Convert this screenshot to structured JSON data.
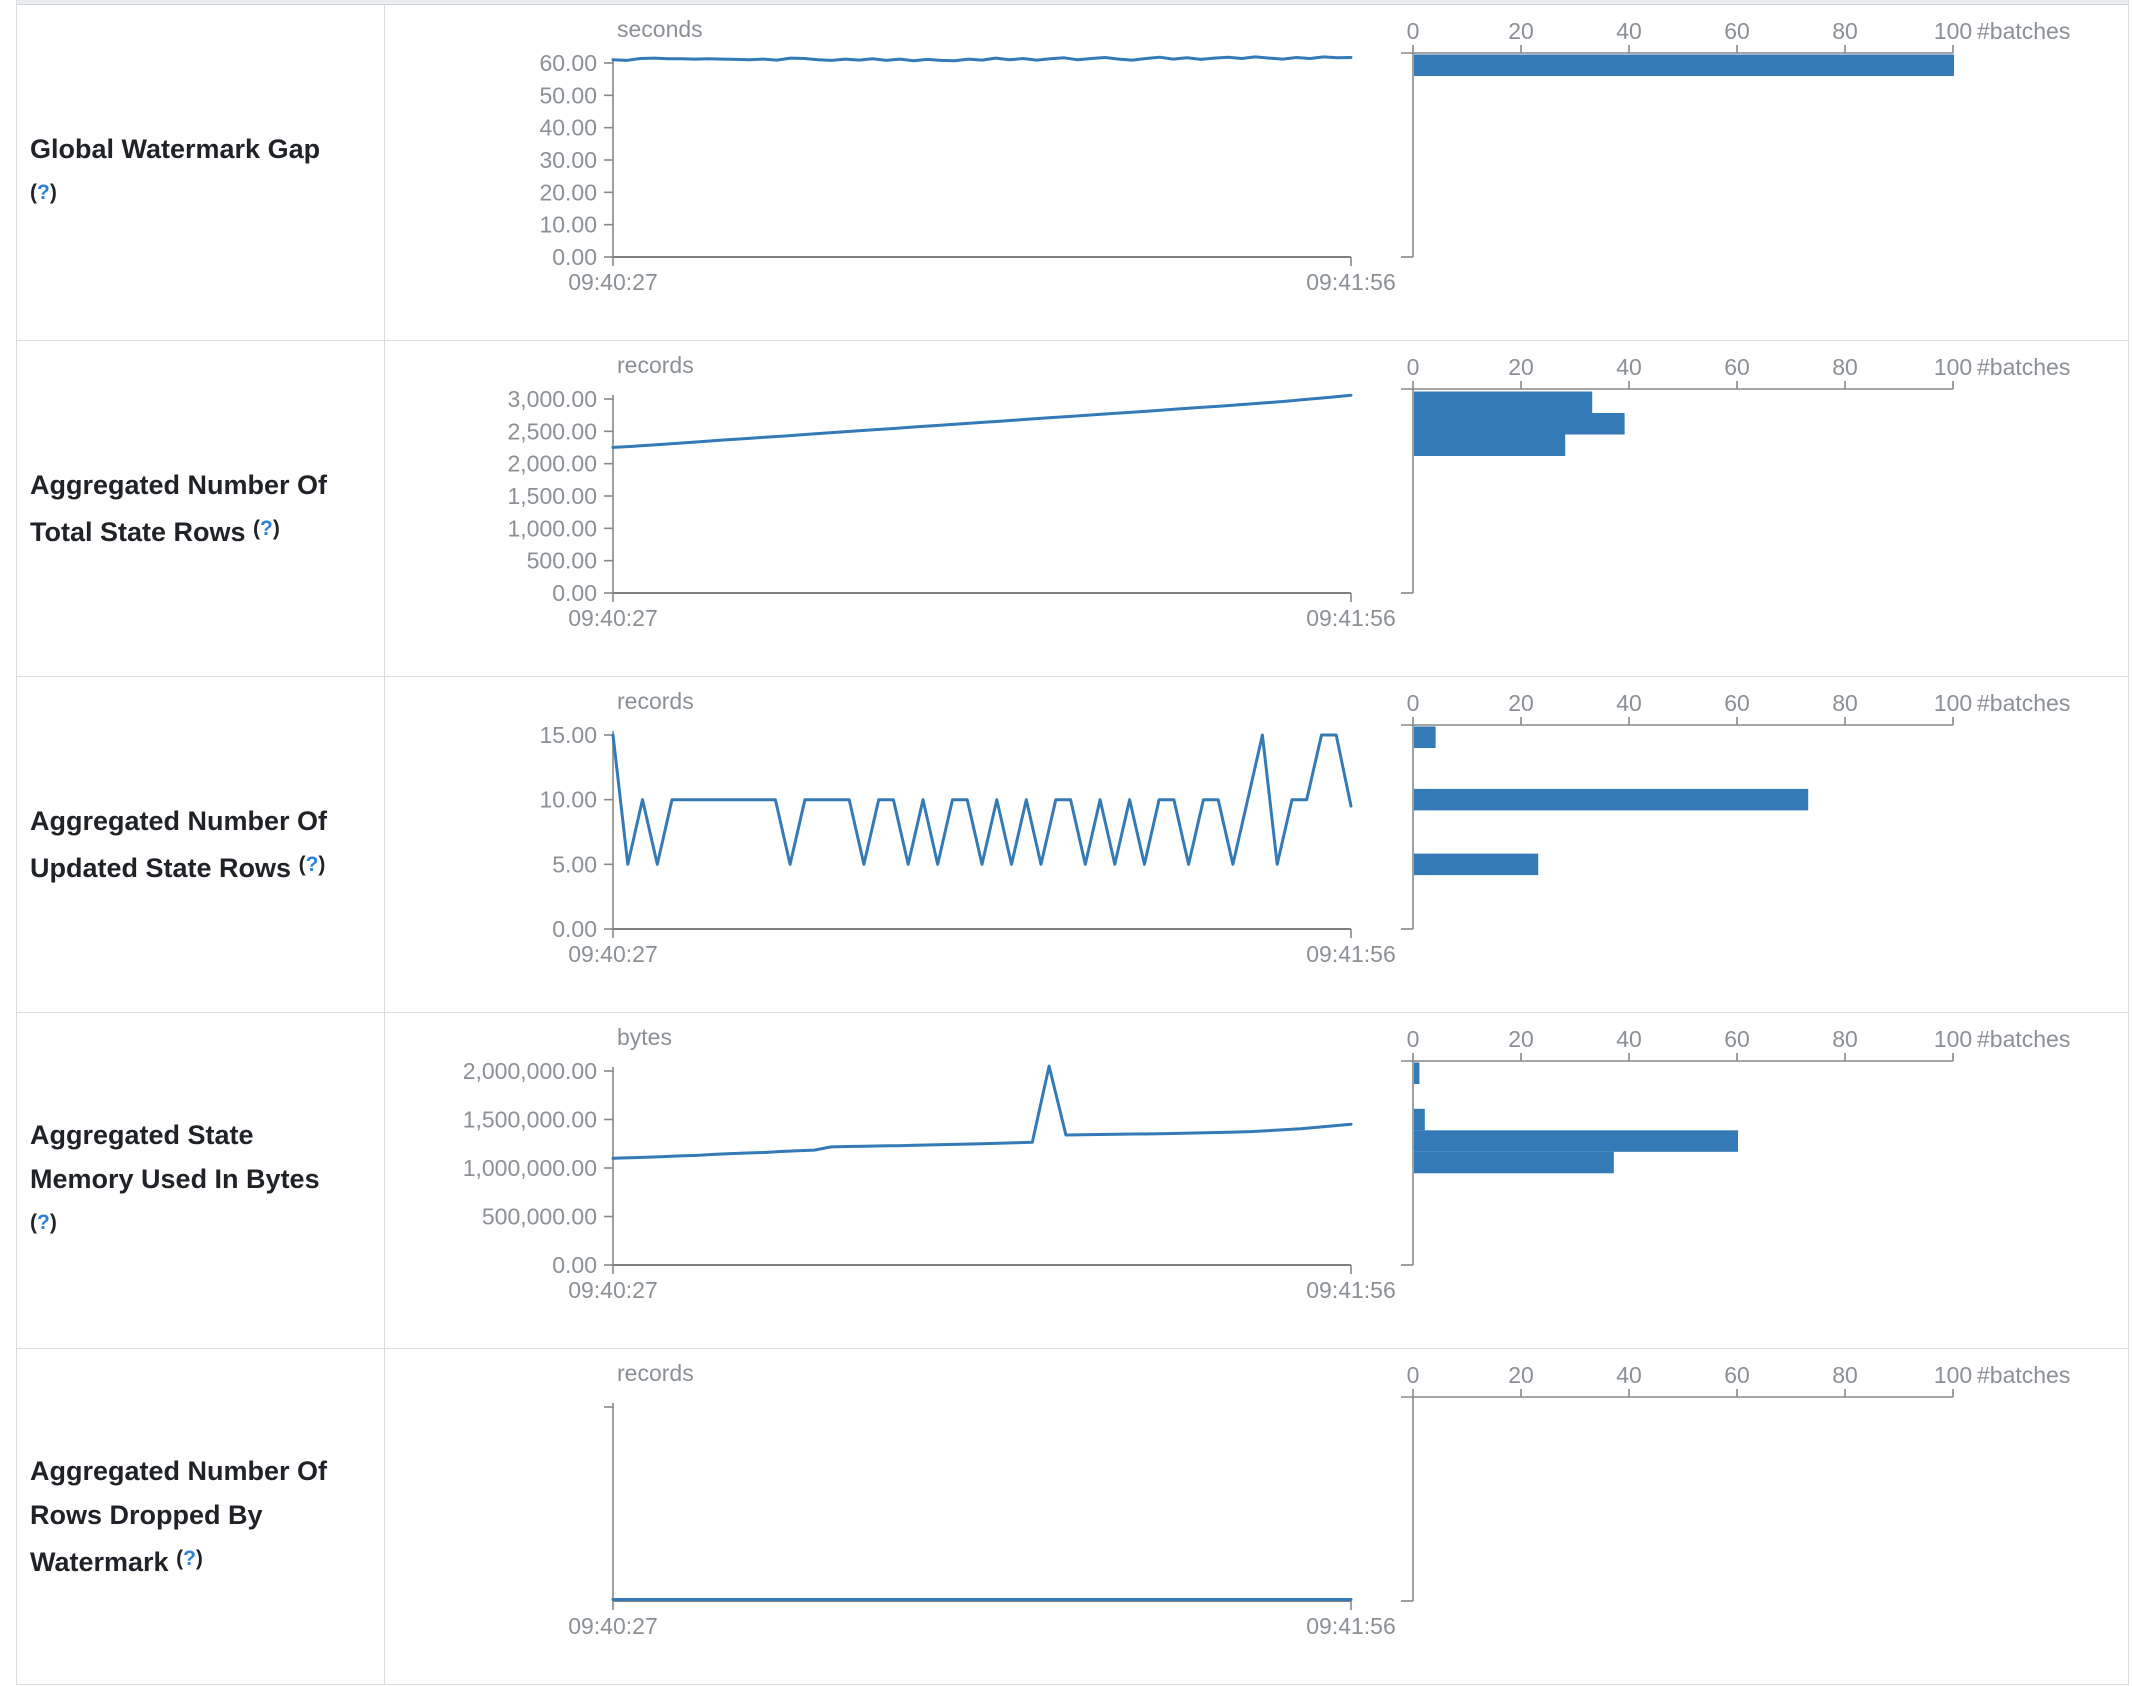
{
  "colors": {
    "accent": "#337ab7",
    "link": "#2f7ed8",
    "axis": "#888888",
    "axis_text": "#8a9095"
  },
  "table": {
    "rows": [
      {
        "name_lines": [
          "Global Watermark Gap"
        ],
        "help_label": "(?)",
        "help_own_line": true
      },
      {
        "name_lines": [
          "Aggregated Number Of",
          "Total State Rows"
        ],
        "help_label": "(?)",
        "help_own_line": false
      },
      {
        "name_lines": [
          "Aggregated Number Of",
          "Updated State Rows"
        ],
        "help_label": "(?)",
        "help_own_line": false
      },
      {
        "name_lines": [
          "Aggregated State",
          "Memory Used In Bytes"
        ],
        "help_label": "(?)",
        "help_own_line": true
      },
      {
        "name_lines": [
          "Aggregated Number Of",
          "Rows Dropped By",
          "Watermark"
        ],
        "help_label": "(?)",
        "help_own_line": false
      }
    ]
  },
  "chart_data": [
    {
      "type": "line",
      "title": "Global Watermark Gap",
      "unit": "seconds",
      "x_start": "09:40:27",
      "x_end": "09:41:56",
      "y_ticks": [
        "60.00",
        "50.00",
        "40.00",
        "30.00",
        "20.00",
        "10.00",
        "0.00"
      ],
      "y_top": 60,
      "values": [
        61.0,
        60.8,
        61.4,
        61.5,
        61.3,
        61.3,
        61.2,
        61.3,
        61.2,
        61.1,
        61.0,
        61.2,
        60.9,
        61.5,
        61.4,
        61.0,
        60.8,
        61.2,
        60.9,
        61.3,
        60.8,
        61.2,
        60.7,
        61.1,
        60.8,
        60.7,
        61.2,
        60.9,
        61.5,
        61.0,
        61.4,
        60.9,
        61.3,
        61.6,
        61.0,
        61.4,
        61.7,
        61.2,
        60.9,
        61.4,
        61.8,
        61.2,
        61.6,
        61.1,
        61.5,
        61.8,
        61.4,
        61.9,
        61.5,
        61.2,
        61.7,
        61.4,
        61.9,
        61.6,
        61.7
      ],
      "histogram": {
        "axis_label": "#batches",
        "x_ticks": [
          0,
          20,
          40,
          60,
          80,
          100
        ],
        "bins": [
          {
            "value": 61,
            "batches": 100
          }
        ]
      }
    },
    {
      "type": "line",
      "title": "Aggregated Number Of Total State Rows",
      "unit": "records",
      "x_start": "09:40:27",
      "x_end": "09:41:56",
      "y_ticks": [
        "3,000.00",
        "2,500.00",
        "2,000.00",
        "1,500.00",
        "1,000.00",
        "500.00",
        "0.00"
      ],
      "y_top": 3000,
      "values": [
        2252,
        2270,
        2293,
        2315,
        2340,
        2364,
        2386,
        2409,
        2430,
        2455,
        2478,
        2500,
        2523,
        2546,
        2570,
        2592,
        2615,
        2638,
        2660,
        2684,
        2707,
        2730,
        2752,
        2775,
        2798,
        2820,
        2845,
        2868,
        2890,
        2915,
        2940,
        2966,
        2995,
        3025,
        3058
      ],
      "histogram": {
        "axis_label": "#batches",
        "x_ticks": [
          0,
          20,
          40,
          60,
          80,
          100
        ],
        "bins": [
          {
            "value": 2950,
            "batches": 33
          },
          {
            "value": 2650,
            "batches": 39
          },
          {
            "value": 2350,
            "batches": 28
          }
        ]
      }
    },
    {
      "type": "line",
      "title": "Aggregated Number Of Updated State Rows",
      "unit": "records",
      "x_start": "09:40:27",
      "x_end": "09:41:56",
      "y_ticks": [
        "15.00",
        "10.00",
        "5.00",
        "0.00"
      ],
      "y_top": 15,
      "values": [
        15,
        5,
        10,
        5,
        10,
        10,
        10,
        10,
        10,
        10,
        10,
        10,
        5,
        10,
        10,
        10,
        10,
        5,
        10,
        10,
        5,
        10,
        5,
        10,
        10,
        5,
        10,
        5,
        10,
        5,
        10,
        10,
        5,
        10,
        5,
        10,
        5,
        10,
        10,
        5,
        10,
        10,
        5,
        10,
        15,
        5,
        10,
        10,
        15,
        15,
        9.5
      ],
      "histogram": {
        "axis_label": "#batches",
        "x_ticks": [
          0,
          20,
          40,
          60,
          80,
          100
        ],
        "bins": [
          {
            "value": 15,
            "batches": 4
          },
          {
            "value": 10,
            "batches": 73
          },
          {
            "value": 5,
            "batches": 23
          }
        ]
      }
    },
    {
      "type": "line",
      "title": "Aggregated State Memory Used In Bytes",
      "unit": "bytes",
      "x_start": "09:40:27",
      "x_end": "09:41:56",
      "y_ticks": [
        "2,000,000.00",
        "1,500,000.00",
        "1,000,000.00",
        "500,000.00",
        "0.00"
      ],
      "y_top": 2000000,
      "values": [
        1100000,
        1105000,
        1110000,
        1118000,
        1125000,
        1130000,
        1140000,
        1148000,
        1155000,
        1160000,
        1170000,
        1178000,
        1185000,
        1218000,
        1222000,
        1225000,
        1228000,
        1230000,
        1235000,
        1238000,
        1242000,
        1246000,
        1250000,
        1255000,
        1260000,
        1265000,
        2050000,
        1340000,
        1342000,
        1345000,
        1348000,
        1350000,
        1352000,
        1355000,
        1358000,
        1362000,
        1366000,
        1370000,
        1375000,
        1385000,
        1395000,
        1405000,
        1420000,
        1435000,
        1450000
      ],
      "histogram": {
        "axis_label": "#batches",
        "x_ticks": [
          0,
          20,
          40,
          60,
          80,
          100
        ],
        "bins": [
          {
            "value": 2050000,
            "batches": 1
          },
          {
            "value": 1500000,
            "batches": 2
          },
          {
            "value": 1350000,
            "batches": 60
          },
          {
            "value": 1200000,
            "batches": 37
          }
        ]
      }
    },
    {
      "type": "line",
      "title": "Aggregated Number Of Rows Dropped By Watermark",
      "unit": "records",
      "x_start": "09:40:27",
      "x_end": "09:41:56",
      "y_ticks": [],
      "y_top": null,
      "values": [
        0,
        0,
        0,
        0,
        0,
        0,
        0,
        0,
        0,
        0,
        0,
        0,
        0,
        0,
        0,
        0,
        0,
        0,
        0,
        0,
        0,
        0,
        0,
        0,
        0,
        0,
        0,
        0,
        0,
        0
      ],
      "histogram": {
        "axis_label": "#batches",
        "x_ticks": [
          0,
          20,
          40,
          60,
          80,
          100
        ],
        "bins": []
      }
    }
  ]
}
